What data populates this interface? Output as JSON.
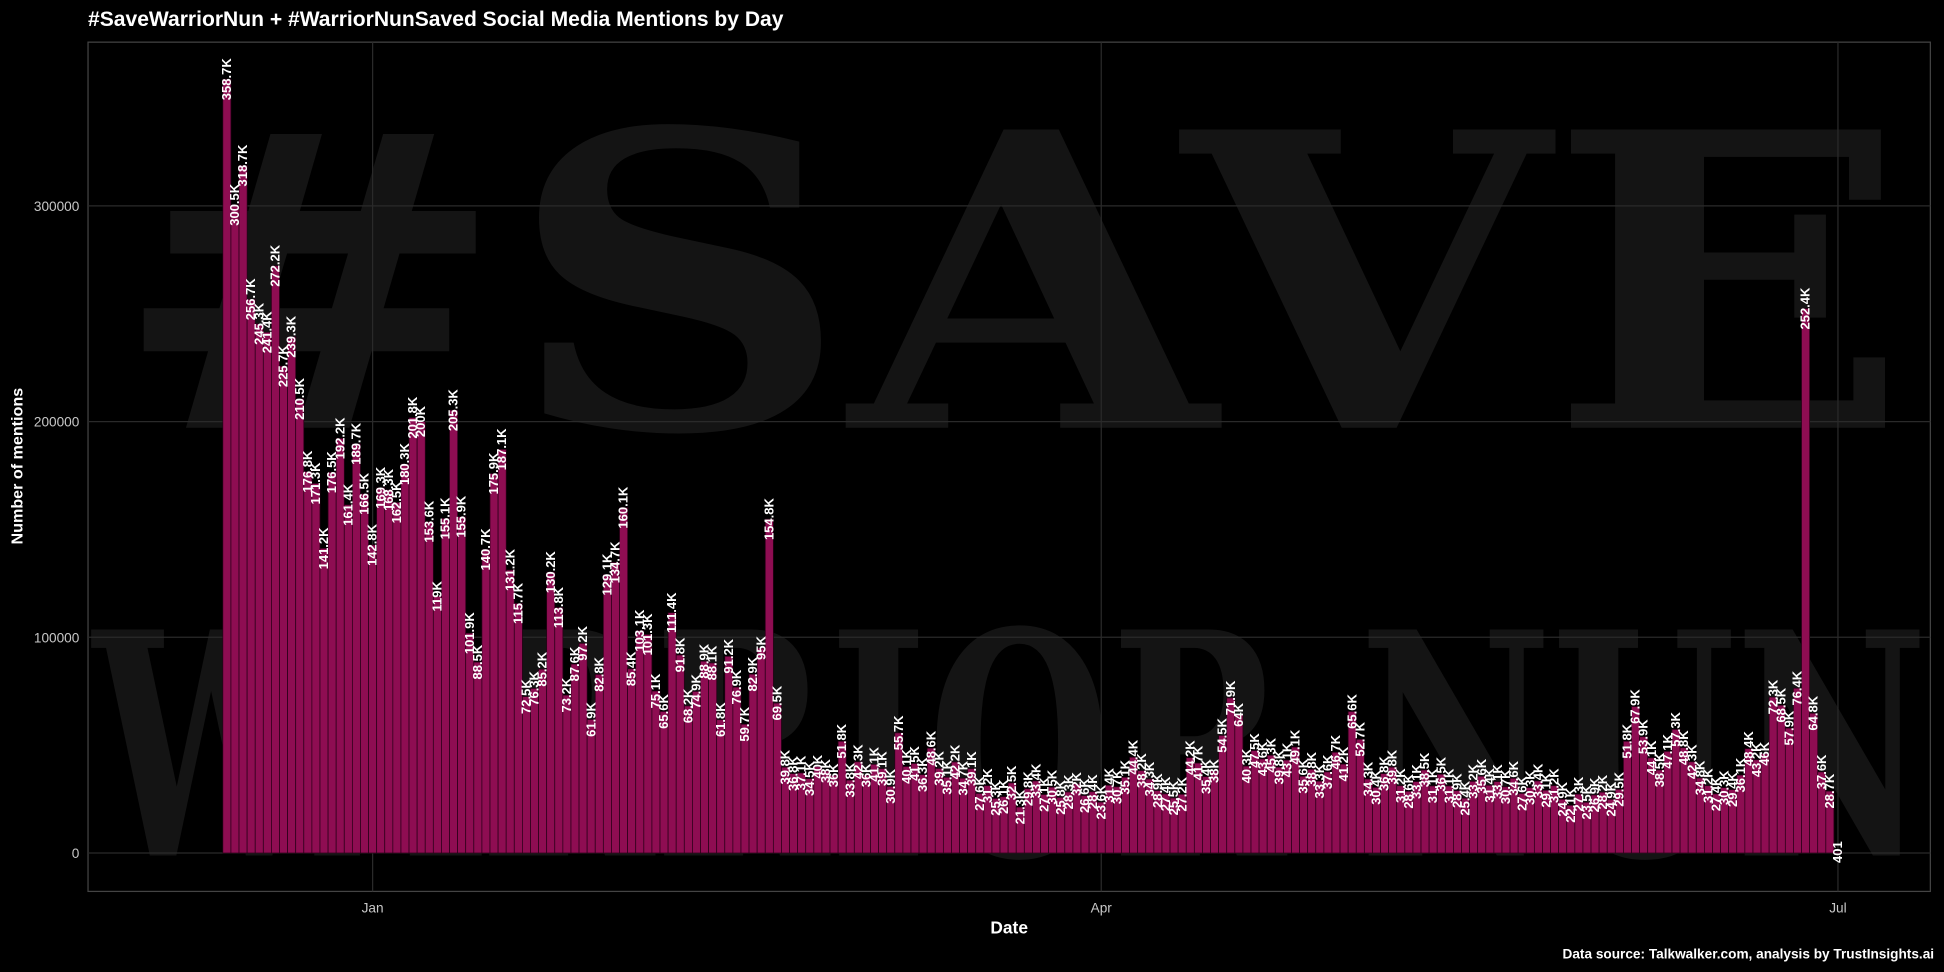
{
  "chart_data": {
    "type": "bar",
    "title": "#SaveWarriorNun + #WarriorNunSaved Social Media Mentions by Day",
    "background_text": [
      "#SAVE",
      "WARRIOR NUN"
    ],
    "x_label": "Date",
    "y_label": "Number of mentions",
    "source": "Data source: Talkwalker.com, analysis by TrustInsights.ai",
    "color": "#8e0d52",
    "grid": true,
    "ylim": [
      -17800,
      375900
    ],
    "yticks": [
      0,
      100000,
      200000,
      300000
    ],
    "categories": [
      null,
      null,
      null,
      null,
      null,
      null,
      null,
      null,
      null,
      null,
      null,
      null,
      null,
      null,
      null,
      null,
      null,
      null,
      "Jan",
      null,
      null,
      null,
      null,
      null,
      null,
      null,
      null,
      null,
      null,
      null,
      null,
      null,
      null,
      null,
      null,
      null,
      null,
      null,
      null,
      null,
      null,
      null,
      null,
      null,
      null,
      null,
      null,
      null,
      null,
      null,
      null,
      null,
      null,
      null,
      null,
      null,
      null,
      null,
      null,
      null,
      null,
      null,
      null,
      null,
      null,
      null,
      null,
      null,
      null,
      null,
      null,
      null,
      null,
      null,
      null,
      null,
      null,
      null,
      null,
      null,
      null,
      null,
      null,
      null,
      null,
      null,
      null,
      null,
      null,
      null,
      null,
      null,
      null,
      null,
      null,
      null,
      null,
      null,
      null,
      null,
      null,
      null,
      null,
      null,
      null,
      null,
      null,
      null,
      "Apr",
      null,
      null,
      null,
      null,
      null,
      null,
      null,
      null,
      null,
      null,
      null,
      null,
      null,
      null,
      null,
      null,
      null,
      null,
      null,
      null,
      null,
      null,
      null,
      null,
      null,
      null,
      null,
      null,
      null,
      null,
      null,
      null,
      null,
      null,
      null,
      null,
      null,
      null,
      null,
      null,
      null,
      null,
      null,
      null,
      null,
      null,
      null,
      null,
      null,
      null,
      null,
      null,
      null,
      null,
      null,
      null,
      null,
      null,
      null,
      null,
      null,
      null,
      null,
      null,
      null,
      null,
      null,
      null,
      null,
      null,
      null,
      null,
      null,
      null,
      null,
      null,
      null,
      null,
      null,
      null,
      null,
      null,
      null,
      null,
      null,
      null,
      null,
      null,
      null,
      null,
      "Jul"
    ],
    "values": [
      358700,
      300500,
      318700,
      256700,
      245300,
      241400,
      272200,
      225700,
      239300,
      210500,
      176800,
      171300,
      141200,
      176500,
      192200,
      161400,
      189700,
      166500,
      142800,
      169300,
      168300,
      162500,
      180300,
      201800,
      200000,
      153600,
      119000,
      155100,
      205300,
      155900,
      101900,
      88500,
      140700,
      175900,
      187100,
      131200,
      115700,
      72500,
      76300,
      85200,
      130200,
      113800,
      73200,
      87600,
      97200,
      61900,
      82800,
      129100,
      134700,
      160100,
      85400,
      103100,
      101300,
      75100,
      65600,
      111400,
      91800,
      68200,
      74900,
      88900,
      88100,
      61800,
      91200,
      76900,
      59700,
      82900,
      95000,
      154800,
      69500,
      39800,
      36800,
      37100,
      34500,
      40000,
      38000,
      36000,
      51800,
      33800,
      42300,
      36000,
      41100,
      39100,
      30900,
      55700,
      40100,
      41500,
      36300,
      48600,
      39200,
      35100,
      42200,
      34700,
      39100,
      27600,
      31200,
      25300,
      26100,
      32500,
      21300,
      29800,
      33400,
      27100,
      30500,
      25800,
      28300,
      32000,
      26600,
      28400,
      23600,
      31400,
      30700,
      35100,
      44400,
      38200,
      34300,
      28900,
      27400,
      25500,
      27200,
      44200,
      41700,
      35400,
      38000,
      54500,
      71900,
      64000,
      40300,
      47500,
      43600,
      45300,
      39800,
      43100,
      49100,
      35600,
      38800,
      33300,
      37600,
      46700,
      41200,
      65600,
      52700,
      34300,
      30400,
      36800,
      39800,
      31200,
      28600,
      33100,
      38500,
      31100,
      36500,
      31100,
      28900,
      25400,
      33200,
      35600,
      31400,
      33100,
      30700,
      34600,
      27600,
      30300,
      33400,
      29100,
      31200,
      24900,
      22100,
      27300,
      23500,
      26900,
      28200,
      24900,
      29500,
      51800,
      67900,
      53900,
      44100,
      38500,
      47100,
      57300,
      48800,
      42300,
      34800,
      31200,
      27400,
      30300,
      29400,
      36100,
      48400,
      43200,
      46000,
      72300,
      68500,
      57900,
      76400,
      252400,
      64800,
      37600,
      28700,
      401
    ],
    "value_labels": [
      "358.7K",
      "300.5K",
      "318.7K",
      "256.7K",
      "245.3K",
      "241.4K",
      "272.2K",
      "225.7K",
      "239.3K",
      "210.5K",
      "176.8K",
      "171.3K",
      "141.2K",
      "176.5K",
      "192.2K",
      "161.4K",
      "189.7K",
      "166.5K",
      "142.8K",
      "169.3K",
      "168.3K",
      "162.5K",
      "180.3K",
      "201.8K",
      "200K",
      "153.6K",
      "119K",
      "155.1K",
      "205.3K",
      "155.9K",
      "101.9K",
      "88.5K",
      "140.7K",
      "175.9K",
      "187.1K",
      "131.2K",
      "115.7K",
      "72.5K",
      "76.3K",
      "85.2K",
      "130.2K",
      "113.8K",
      "73.2K",
      "87.6K",
      "97.2K",
      "61.9K",
      "82.8K",
      "129.1K",
      "134.7K",
      "160.1K",
      "85.4K",
      "103.1K",
      "101.3K",
      "75.1K",
      "65.6K",
      "111.4K",
      "91.8K",
      "68.2K",
      "74.9K",
      "88.9K",
      "88.1K",
      "61.8K",
      "91.2K",
      "76.9K",
      "59.7K",
      "82.9K",
      "95K",
      "154.8K",
      "69.5K",
      "39.8K",
      "36.8K",
      "37.1K",
      "34.5K",
      "40K",
      "38K",
      "36K",
      "51.8K",
      "33.8K",
      "42.3K",
      "36K",
      "41.1K",
      "39.1K",
      "30.9K",
      "55.7K",
      "40.1K",
      "41.5K",
      "36.3K",
      "48.6K",
      "39.2K",
      "35.1K",
      "42.2K",
      "34.7K",
      "39.1K",
      "27.6K",
      "31.2K",
      "25.3K",
      "26.1K",
      "32.5K",
      "21.3K",
      "29.8K",
      "33.4K",
      "27.1K",
      "30.5K",
      "25.8K",
      "28.3K",
      "32K",
      "26.6K",
      "28.4K",
      "23.6K",
      "31.4K",
      "30.7K",
      "35.1K",
      "44.4K",
      "38.2K",
      "34.3K",
      "28.9K",
      "27.4K",
      "25.5K",
      "27.2K",
      "44.2K",
      "41.7K",
      "35.4K",
      "38K",
      "54.5K",
      "71.9K",
      "64K",
      "40.3K",
      "47.5K",
      "43.6K",
      "45.3K",
      "39.8K",
      "43.1K",
      "49.1K",
      "35.6K",
      "38.8K",
      "33.3K",
      "37.6K",
      "46.7K",
      "41.2K",
      "65.6K",
      "52.7K",
      "34.3K",
      "30.4K",
      "36.8K",
      "39.8K",
      "31.2K",
      "28.6K",
      "33.1K",
      "38.5K",
      "31.1K",
      "36.5K",
      "31.1K",
      "28.9K",
      "25.4K",
      "33.2K",
      "35.6K",
      "31.4K",
      "33.1K",
      "30.7K",
      "34.6K",
      "27.6K",
      "30.3K",
      "33.4K",
      "29.1K",
      "31.2K",
      "24.9K",
      "22.1K",
      "27.3K",
      "23.5K",
      "26.9K",
      "28.2K",
      "24.9K",
      "29.5K",
      "51.8K",
      "67.9K",
      "53.9K",
      "44.1K",
      "38.5K",
      "47.1K",
      "57.3K",
      "48.8K",
      "42.3K",
      "34.8K",
      "31.2K",
      "27.4K",
      "30.3K",
      "29.4K",
      "36.1K",
      "48.4K",
      "43.2K",
      "46K",
      "72.3K",
      "68.5K",
      "57.9K",
      "76.4K",
      "252.4K",
      "64.8K",
      "37.6K",
      "28.7K",
      "401"
    ]
  }
}
